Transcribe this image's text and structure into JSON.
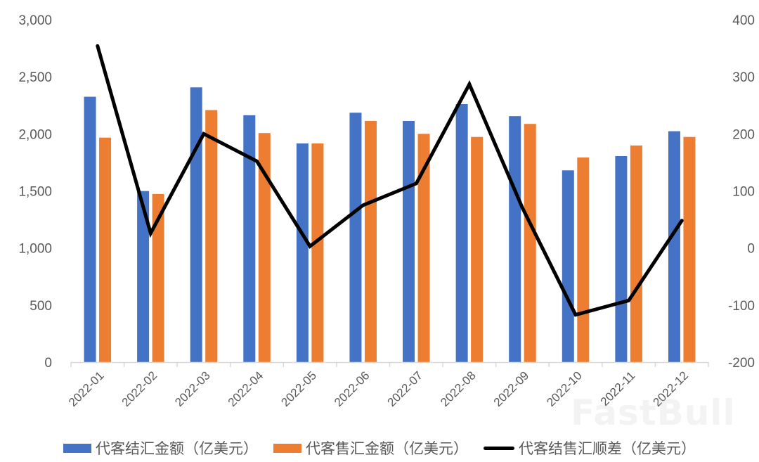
{
  "chart_data": {
    "type": "bar",
    "title": "",
    "xlabel": "",
    "ylabel": "",
    "y2label": "",
    "categories": [
      "2022-01",
      "2022-02",
      "2022-03",
      "2022-04",
      "2022-05",
      "2022-06",
      "2022-07",
      "2022-08",
      "2022-09",
      "2022-10",
      "2022-11",
      "2022-12"
    ],
    "series": [
      {
        "name": "代客结汇金额（亿美元）",
        "type": "bar",
        "axis": "left",
        "color": "#4472C4",
        "values": [
          2325,
          1499,
          2407,
          2163,
          1916,
          2185,
          2113,
          2261,
          2155,
          1680,
          1805,
          2023
        ]
      },
      {
        "name": "代客售汇金额（亿美元）",
        "type": "bar",
        "axis": "left",
        "color": "#ED7D31",
        "values": [
          1967,
          1473,
          2208,
          2007,
          1916,
          2113,
          2000,
          1973,
          2087,
          1793,
          1898,
          1973
        ]
      },
      {
        "name": "代客结售汇顺差（亿美元）",
        "type": "line",
        "axis": "right",
        "color": "#000000",
        "values": [
          354,
          26,
          200,
          152,
          3,
          75,
          113,
          287,
          70,
          -117,
          -92,
          48
        ]
      }
    ],
    "ylim": [
      0,
      3000
    ],
    "y2lim": [
      -200,
      400
    ],
    "yticks": [
      "0",
      "500",
      "1,000",
      "1,500",
      "2,000",
      "2,500",
      "3,000"
    ],
    "y2ticks": [
      "-200",
      "-100",
      "0",
      "100",
      "200",
      "300",
      "400"
    ],
    "grid": false,
    "legend_position": "bottom"
  },
  "watermark": "FastBull"
}
